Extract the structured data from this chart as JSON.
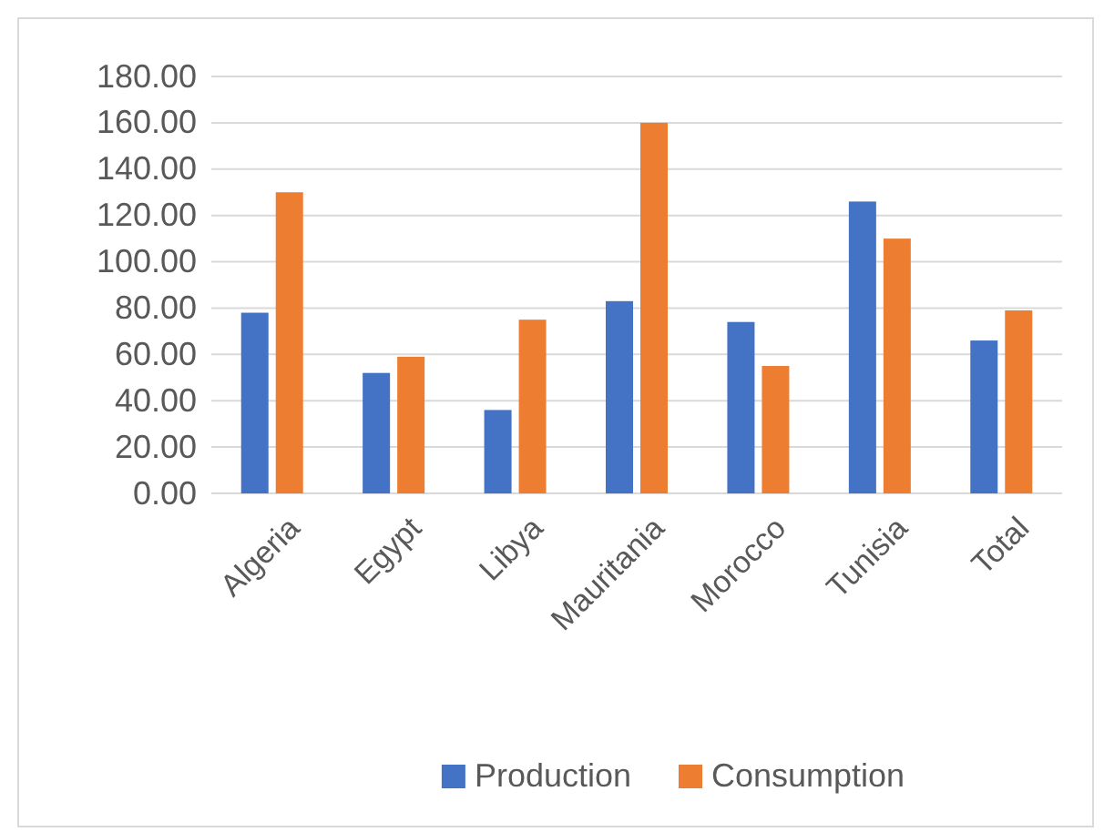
{
  "chart_data": {
    "type": "bar",
    "categories": [
      "Algeria",
      "Egypt",
      "Libya",
      "Mauritania",
      "Morocco",
      "Tunisia",
      "Total"
    ],
    "series": [
      {
        "name": "Production",
        "color": "#4472c4",
        "values": [
          78,
          52,
          36,
          83,
          74,
          126,
          66
        ]
      },
      {
        "name": "Consumption",
        "color": "#ed7d31",
        "values": [
          130,
          59,
          75,
          160,
          55,
          110,
          79
        ]
      }
    ],
    "ylim": [
      0,
      180
    ],
    "yticks": [
      {
        "value": 0,
        "label": "0.00"
      },
      {
        "value": 20,
        "label": "20.00"
      },
      {
        "value": 40,
        "label": "40.00"
      },
      {
        "value": 60,
        "label": "60.00"
      },
      {
        "value": 80,
        "label": "80.00"
      },
      {
        "value": 100,
        "label": "100.00"
      },
      {
        "value": 120,
        "label": "120.00"
      },
      {
        "value": 140,
        "label": "140.00"
      },
      {
        "value": 160,
        "label": "160.00"
      },
      {
        "value": 180,
        "label": "180.00"
      }
    ],
    "grid": "y",
    "legend": "bottom"
  }
}
